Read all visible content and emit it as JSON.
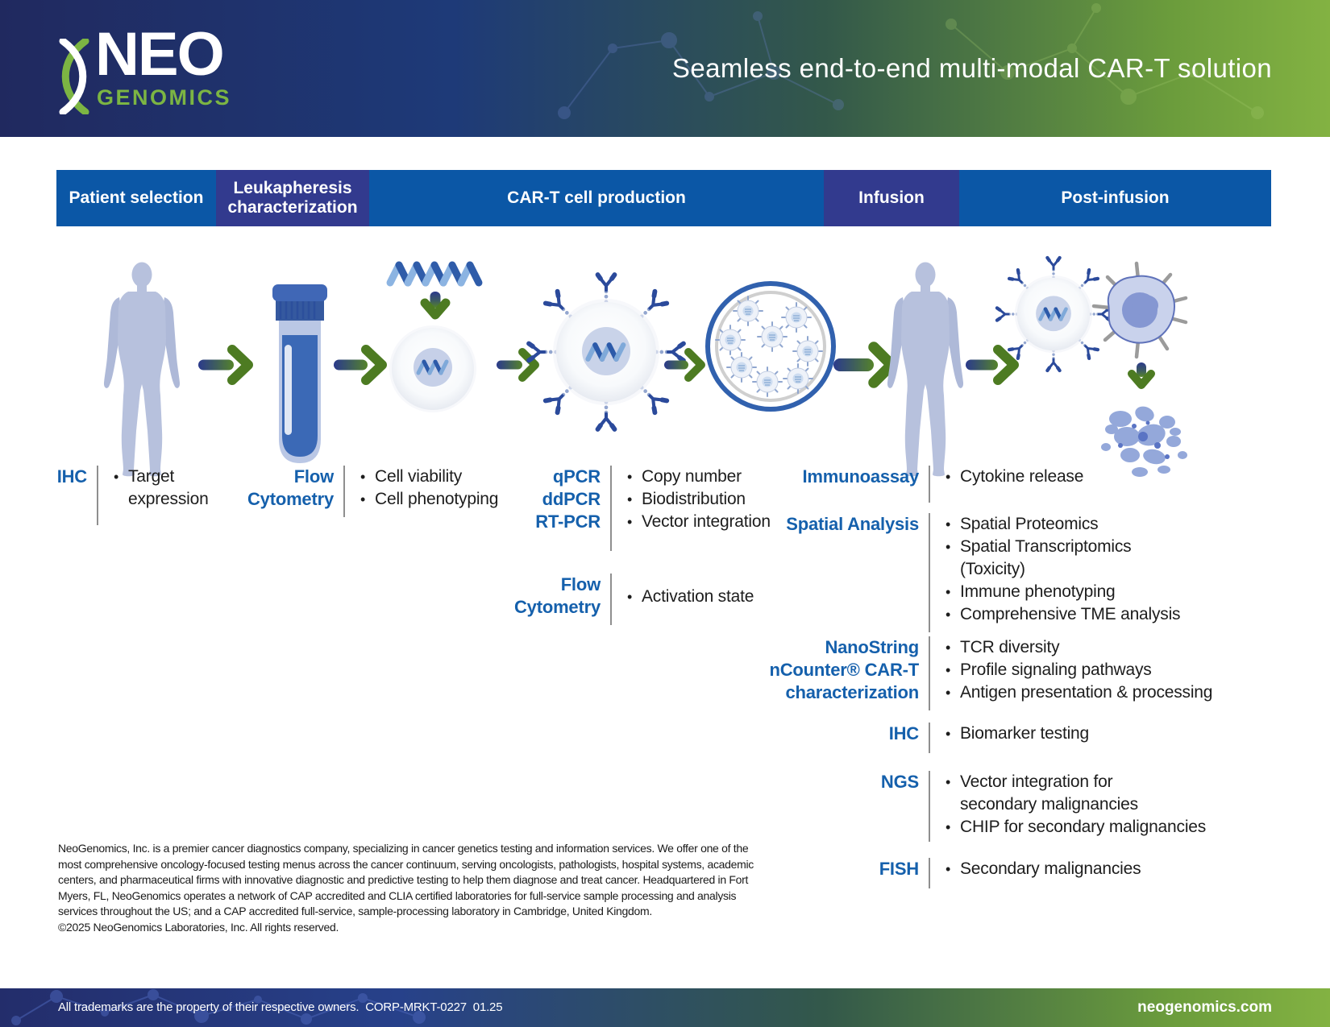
{
  "header": {
    "title": "Seamless end-to-end multi-modal CAR-T solution",
    "logo": {
      "line1": "NEO",
      "line2": "GENOMICS"
    }
  },
  "process_bar": {
    "stages": [
      {
        "id": "patient-selection",
        "label": "Patient selection"
      },
      {
        "id": "leukapheresis-characterization",
        "label": "Leukapheresis characterization"
      },
      {
        "id": "cart-cell-production",
        "label": "CAR-T cell production"
      },
      {
        "id": "infusion",
        "label": "Infusion"
      },
      {
        "id": "post-infusion",
        "label": "Post-infusion"
      }
    ]
  },
  "test_groups": [
    {
      "id": "ihc-left",
      "label_lines": [
        "IHC"
      ],
      "items": [
        "Target\nexpression"
      ]
    },
    {
      "id": "flow-left",
      "label_lines": [
        "Flow",
        "Cytometry"
      ],
      "items": [
        "Cell viability",
        "Cell phenotyping"
      ]
    },
    {
      "id": "pcr",
      "label_lines": [
        "qPCR",
        "ddPCR",
        "RT-PCR"
      ],
      "items": [
        "Copy number",
        "Biodistribution",
        "Vector integration"
      ]
    },
    {
      "id": "flow-mid",
      "label_lines": [
        "Flow",
        "Cytometry"
      ],
      "items": [
        "Activation state"
      ]
    },
    {
      "id": "immunoassay",
      "label_lines": [
        "Immunoassay"
      ],
      "items": [
        "Cytokine release"
      ]
    },
    {
      "id": "spatial",
      "label_lines": [
        "Spatial Analysis"
      ],
      "items": [
        "Spatial Proteomics",
        "Spatial Transcriptomics\n(Toxicity)",
        "Immune phenotyping",
        "Comprehensive TME analysis"
      ]
    },
    {
      "id": "nanostring",
      "label_lines": [
        "NanoString",
        "nCounter® CAR-T",
        "characterization"
      ],
      "items": [
        "TCR diversity",
        "Profile signaling pathways",
        "Antigen presentation & processing"
      ]
    },
    {
      "id": "ihc-right",
      "label_lines": [
        "IHC"
      ],
      "items": [
        "Biomarker testing"
      ]
    },
    {
      "id": "ngs",
      "label_lines": [
        "NGS"
      ],
      "items": [
        "Vector integration for\nsecondary malignancies",
        "CHIP for secondary malignancies"
      ]
    },
    {
      "id": "fish",
      "label_lines": [
        "FISH"
      ],
      "items": [
        "Secondary malignancies"
      ]
    }
  ],
  "footer": {
    "about_lines": [
      "NeoGenomics, Inc. is a premier cancer diagnostics company, specializing in cancer genetics testing and information services. We offer one of the",
      "most comprehensive oncology-focused testing menus across the cancer continuum, serving oncologists, pathologists, hospital systems, academic",
      "centers, and pharmaceutical firms with innovative diagnostic and predictive testing to help them diagnose and treat cancer. Headquartered in Fort",
      "Myers, FL, NeoGenomics operates a network of CAP accredited and CLIA certified laboratories for full-service sample processing and analysis",
      "services throughout the US; and a CAP accredited full-service, sample-processing laboratory in Cambridge, United Kingdom.",
      "©2025 NeoGenomics Laboratories, Inc. All rights reserved."
    ],
    "trademark_line": "All trademarks are the property of their respective owners.  CORP-MRKT-0227  01.25",
    "website": "neogenomics.com"
  },
  "colors": {
    "bar_blue": "#0b57a6",
    "bar_indigo": "#323a8e",
    "label_blue": "#1560ac",
    "text_dark": "#1d1d1d",
    "logo_green": "#7cb543",
    "arrow_green": "#4d7b22",
    "arrow_navy": "#2b3a8c"
  }
}
